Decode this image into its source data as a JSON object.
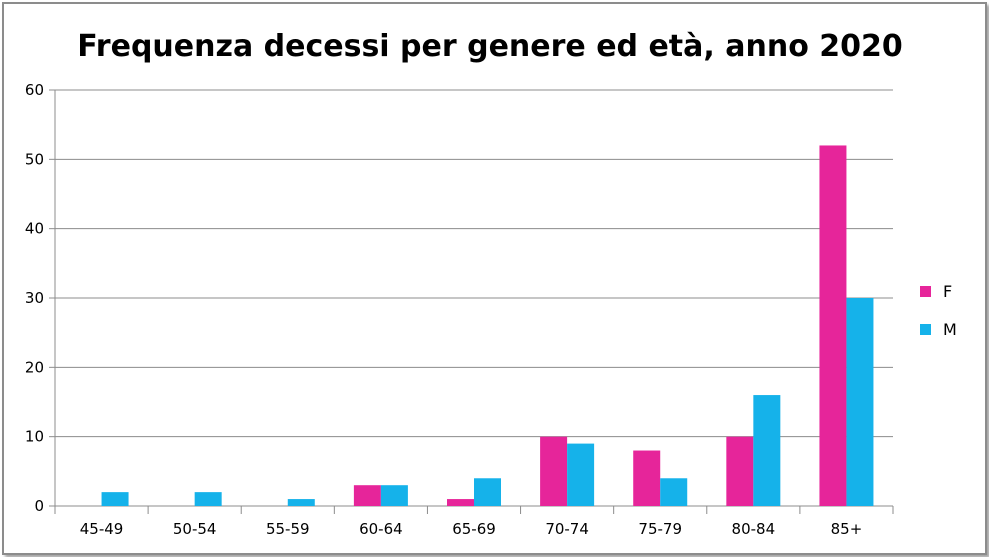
{
  "chart_data": {
    "type": "bar",
    "title": "Frequenza decessi  per genere ed età, anno 2020",
    "xlabel": "",
    "ylabel": "",
    "categories": [
      "45-49",
      "50-54",
      "55-59",
      "60-64",
      "65-69",
      "70-74",
      "75-79",
      "80-84",
      "85+"
    ],
    "series": [
      {
        "name": "F",
        "color": "#e6259a",
        "values": [
          0,
          0,
          0,
          3,
          1,
          10,
          8,
          10,
          52
        ]
      },
      {
        "name": "M",
        "color": "#15b2ea",
        "values": [
          2,
          2,
          1,
          3,
          4,
          9,
          4,
          16,
          30
        ]
      }
    ],
    "ylim": [
      0,
      60
    ],
    "yticks": [
      0,
      10,
      20,
      30,
      40,
      50,
      60
    ],
    "grid": true,
    "legend": "right"
  }
}
